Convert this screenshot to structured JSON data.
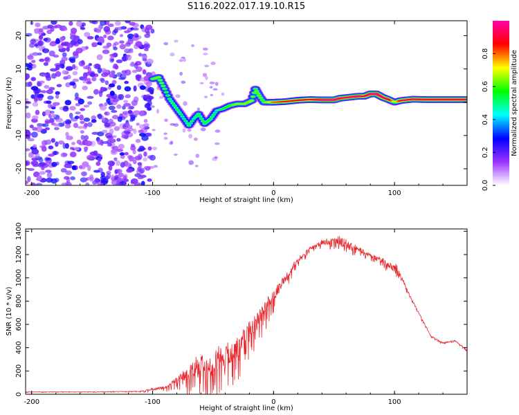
{
  "title": "S116.2022.017.19.10.R15",
  "chart_data": [
    {
      "type": "heatmap",
      "name": "spectrogram",
      "xlabel": "Height of straight line (km)",
      "ylabel": "Frequency (Hz)",
      "xlim": [
        -205,
        160
      ],
      "ylim": [
        -25,
        24.5
      ],
      "x_ticks": [
        -200,
        -100,
        0,
        100
      ],
      "y_ticks": [
        -20,
        -10,
        0,
        10,
        20
      ],
      "colorbar": {
        "label": "Normalized spectral amplitude",
        "range": [
          0,
          1
        ],
        "ticks": [
          "0.0",
          "0.2",
          "0.4",
          "0.6",
          "0.8"
        ],
        "colormap": [
          "#ffffff",
          "#9933ff",
          "#0000ff",
          "#00ffff",
          "#00ff00",
          "#ffff00",
          "#ff0000",
          "#ff00aa"
        ]
      },
      "noise_region_x": [
        -205,
        -100
      ],
      "ridge": [
        {
          "x": -100,
          "y": 7,
          "v": 0.55
        },
        {
          "x": -95,
          "y": 7.5,
          "v": 0.6
        },
        {
          "x": -90,
          "y": 4,
          "v": 0.55
        },
        {
          "x": -86,
          "y": 1,
          "v": 0.5
        },
        {
          "x": -82,
          "y": -1,
          "v": 0.5
        },
        {
          "x": -78,
          "y": -3,
          "v": 0.5
        },
        {
          "x": -74,
          "y": -5,
          "v": 0.45
        },
        {
          "x": -70,
          "y": -7,
          "v": 0.5
        },
        {
          "x": -66,
          "y": -5,
          "v": 0.45
        },
        {
          "x": -62,
          "y": -3.5,
          "v": 0.5
        },
        {
          "x": -57,
          "y": -6.5,
          "v": 0.5
        },
        {
          "x": -52,
          "y": -5,
          "v": 0.5
        },
        {
          "x": -47,
          "y": -2.5,
          "v": 0.45
        },
        {
          "x": -42,
          "y": -2,
          "v": 0.5
        },
        {
          "x": -36,
          "y": -1,
          "v": 0.55
        },
        {
          "x": -30,
          "y": -0.5,
          "v": 0.6
        },
        {
          "x": -24,
          "y": -0.5,
          "v": 0.6
        },
        {
          "x": -18,
          "y": 0.5,
          "v": 0.6
        },
        {
          "x": -15,
          "y": 4,
          "v": 0.55
        },
        {
          "x": -12,
          "y": 2,
          "v": 0.6
        },
        {
          "x": -8,
          "y": 0,
          "v": 0.55
        },
        {
          "x": 0,
          "y": 0,
          "v": 0.75
        },
        {
          "x": 10,
          "y": 0.2,
          "v": 0.8
        },
        {
          "x": 20,
          "y": 0.6,
          "v": 0.8
        },
        {
          "x": 30,
          "y": 0.8,
          "v": 0.85
        },
        {
          "x": 40,
          "y": 0.7,
          "v": 0.95
        },
        {
          "x": 50,
          "y": 0.7,
          "v": 0.95
        },
        {
          "x": 55,
          "y": 1.2,
          "v": 0.9
        },
        {
          "x": 60,
          "y": 1.4,
          "v": 0.88
        },
        {
          "x": 65,
          "y": 1.6,
          "v": 0.9
        },
        {
          "x": 70,
          "y": 1.8,
          "v": 0.92
        },
        {
          "x": 75,
          "y": 1.8,
          "v": 0.85
        },
        {
          "x": 80,
          "y": 2.5,
          "v": 0.92
        },
        {
          "x": 85,
          "y": 2.5,
          "v": 0.95
        },
        {
          "x": 90,
          "y": 1.5,
          "v": 0.85
        },
        {
          "x": 95,
          "y": 0.8,
          "v": 0.9
        },
        {
          "x": 100,
          "y": 0,
          "v": 0.6
        },
        {
          "x": 105,
          "y": 0.5,
          "v": 0.85
        },
        {
          "x": 115,
          "y": 0.9,
          "v": 0.9
        },
        {
          "x": 125,
          "y": 0.8,
          "v": 0.9
        },
        {
          "x": 135,
          "y": 0.8,
          "v": 0.9
        },
        {
          "x": 145,
          "y": 0.8,
          "v": 0.9
        },
        {
          "x": 155,
          "y": 0.8,
          "v": 0.9
        },
        {
          "x": 160,
          "y": 0.8,
          "v": 0.9
        }
      ]
    },
    {
      "type": "line",
      "name": "snr",
      "xlabel": "Height of straight line (km)",
      "ylabel": "SNR (10 * v/v)",
      "xlim": [
        -205,
        160
      ],
      "ylim": [
        0,
        1420
      ],
      "x_ticks": [
        -200,
        -100,
        0,
        100
      ],
      "y_ticks": [
        0,
        200,
        400,
        600,
        800,
        1000,
        1200,
        1400
      ],
      "color": "#e8252a",
      "envelope": {
        "x": [
          -205,
          -150,
          -110,
          -90,
          -80,
          -70,
          -60,
          -50,
          -40,
          -30,
          -20,
          -10,
          0,
          10,
          20,
          30,
          40,
          50,
          60,
          70,
          80,
          90,
          100,
          105,
          110,
          120,
          125,
          130,
          140,
          150,
          155,
          160
        ],
        "base": [
          20,
          20,
          25,
          60,
          120,
          180,
          240,
          280,
          320,
          400,
          550,
          700,
          850,
          1000,
          1150,
          1250,
          1300,
          1320,
          1300,
          1250,
          1190,
          1150,
          1080,
          1020,
          900,
          700,
          600,
          500,
          440,
          460,
          420,
          380
        ],
        "amp": [
          5,
          5,
          8,
          50,
          90,
          220,
          300,
          320,
          340,
          300,
          280,
          220,
          160,
          100,
          60,
          50,
          60,
          80,
          120,
          70,
          50,
          60,
          120,
          80,
          30,
          20,
          20,
          15,
          15,
          15,
          15,
          15
        ]
      }
    }
  ]
}
